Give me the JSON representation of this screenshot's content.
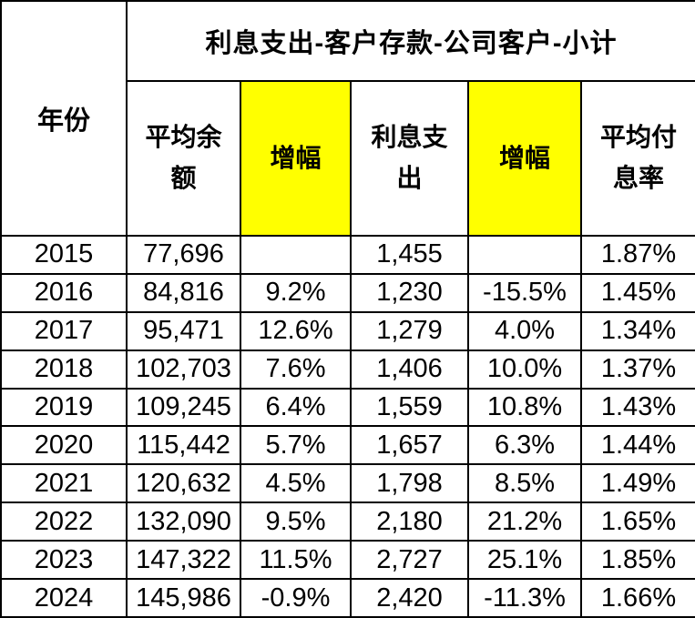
{
  "colors": {
    "background": "#ffffff",
    "border": "#000000",
    "text": "#000000",
    "header_highlight": "#ffff00"
  },
  "chart_data": {
    "type": "table",
    "title": "利息支出-客户存款-公司客户-小计",
    "corner_header": "年份",
    "sub_headers": [
      {
        "label": "平均余额",
        "highlight": false
      },
      {
        "label": "增幅",
        "highlight": true
      },
      {
        "label": "利息支出",
        "highlight": false
      },
      {
        "label": "增幅",
        "highlight": true
      },
      {
        "label": "平均付息率",
        "highlight": false
      }
    ],
    "columns": [
      "年份",
      "平均余额",
      "增幅",
      "利息支出",
      "增幅",
      "平均付息率"
    ],
    "rows": [
      [
        "2015",
        "77,696",
        "",
        "1,455",
        "",
        "1.87%"
      ],
      [
        "2016",
        "84,816",
        "9.2%",
        "1,230",
        "-15.5%",
        "1.45%"
      ],
      [
        "2017",
        "95,471",
        "12.6%",
        "1,279",
        "4.0%",
        "1.34%"
      ],
      [
        "2018",
        "102,703",
        "7.6%",
        "1,406",
        "10.0%",
        "1.37%"
      ],
      [
        "2019",
        "109,245",
        "6.4%",
        "1,559",
        "10.8%",
        "1.43%"
      ],
      [
        "2020",
        "115,442",
        "5.7%",
        "1,657",
        "6.3%",
        "1.44%"
      ],
      [
        "2021",
        "120,632",
        "4.5%",
        "1,798",
        "8.5%",
        "1.49%"
      ],
      [
        "2022",
        "132,090",
        "9.5%",
        "2,180",
        "21.2%",
        "1.65%"
      ],
      [
        "2023",
        "147,322",
        "11.5%",
        "2,727",
        "25.1%",
        "1.85%"
      ],
      [
        "2024",
        "145,986",
        "-0.9%",
        "2,420",
        "-11.3%",
        "1.66%"
      ]
    ]
  }
}
